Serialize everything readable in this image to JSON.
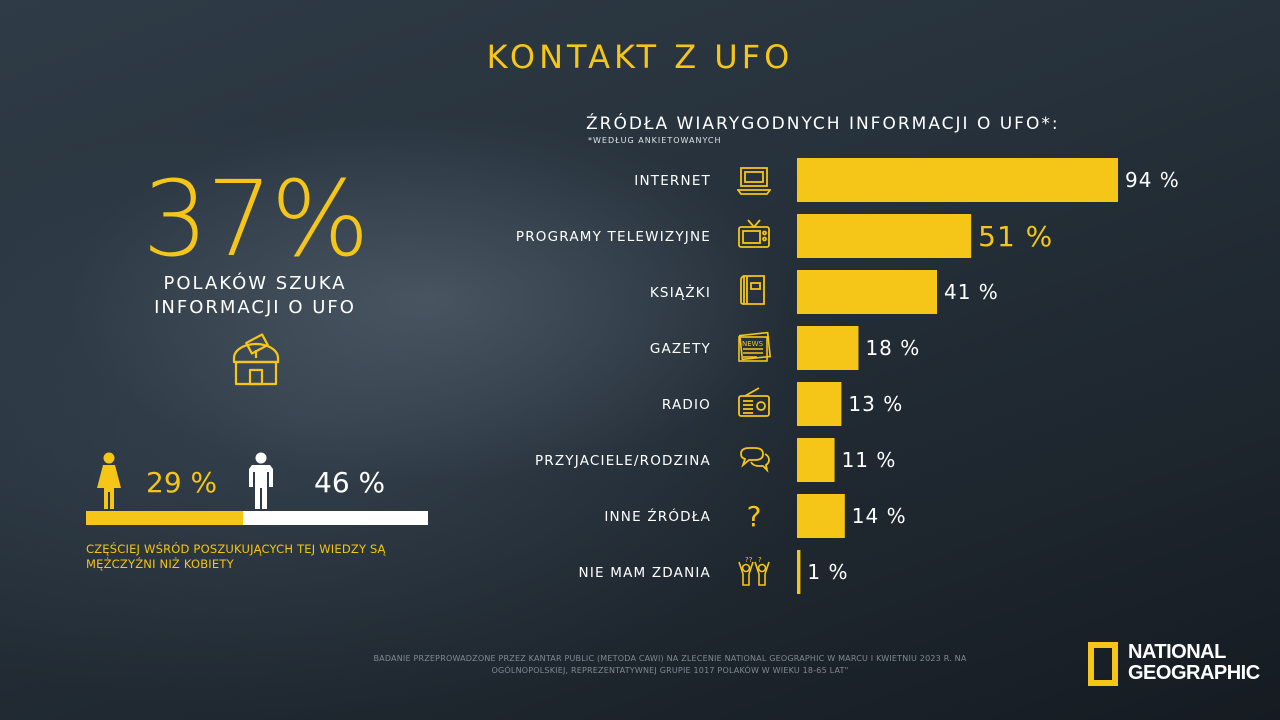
{
  "title": "KONTAKT Z UFO",
  "headline": {
    "percent": "37%",
    "caption_line1": "POLAKÓW SZUKA",
    "caption_line2": "INFORMACJI O UFO"
  },
  "gender": {
    "female_percent_label": "29 %",
    "male_percent_label": "46 %",
    "female_value": 29,
    "male_value": 46,
    "note_line1": "CZĘŚCIEJ WŚRÓD POSZUKUJĄCYCH TEJ WIEDZY SĄ",
    "note_line2": "MĘŻCZYŹNI NIŻ KOBIETY"
  },
  "footer": {
    "line1": "BADANIE PRZEPROWADZONE PRZEZ KANTAR PUBLIC (METODA CAWI) NA ZLECENIE NATIONAL GEOGRAPHIC W MARCU I KWIETNIU 2023 R. NA",
    "line2": "OGÓLNOPOLSKIEJ, REPREZENTATYWNEJ GRUPIE 1017 POLAKÓW W WIEKU 18-65 LAT\""
  },
  "logo": {
    "line1": "NATIONAL",
    "line2": "GEOGRAPHIC"
  },
  "colors": {
    "accent": "#f5c518",
    "text": "#ffffff"
  },
  "chart_data": {
    "type": "bar",
    "orientation": "horizontal",
    "title": "ŹRÓDŁA WIARYGODNYCH INFORMACJI O UFO*:",
    "subtitle": "*WEDŁUG ANKIETOWANYCH",
    "categories": [
      "INTERNET",
      "PROGRAMY TELEWIZYJNE",
      "KSIĄŻKI",
      "GAZETY",
      "RADIO",
      "PRZYJACIELE/RODZINA",
      "INNE ŹRÓDŁA",
      "NIE MAM ZDANIA"
    ],
    "values": [
      94,
      51,
      41,
      18,
      13,
      11,
      14,
      1
    ],
    "value_labels": [
      "94 %",
      "51 %",
      "41 %",
      "18 %",
      "13 %",
      "11 %",
      "14 %",
      "1 %"
    ],
    "icons": [
      "laptop-icon",
      "tv-icon",
      "book-icon",
      "newspaper-icon",
      "radio-icon",
      "chat-icon",
      "question-icon",
      "confused-people-icon"
    ],
    "highlight_index": 1,
    "xlim": [
      0,
      94
    ],
    "grid": false
  }
}
